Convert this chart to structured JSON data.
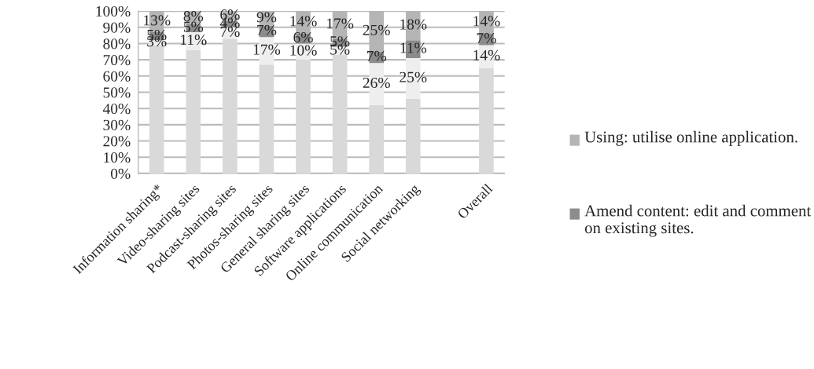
{
  "chart_data": {
    "type": "bar",
    "stacked": true,
    "categories": [
      "Information sharing*",
      "Video-sharing sites",
      "Podcast-sharing sites",
      "Photos-sharing sites",
      "General sharing sites",
      "Software applications",
      "Online communication",
      "Social networking",
      null,
      "Overall"
    ],
    "series": [
      {
        "color": "#d9d9d9",
        "values": [
          79,
          76,
          83,
          67,
          70,
          73,
          42,
          46,
          null,
          65
        ]
      },
      {
        "color": "#eeeeee",
        "values": [
          3,
          11,
          7,
          17,
          10,
          5,
          26,
          25,
          null,
          14
        ],
        "value_labels": [
          "3%",
          "11%",
          "7%",
          "17%",
          "10%",
          "5%",
          "26%",
          "25%",
          null,
          "14%"
        ]
      },
      {
        "name": "Amend content: edit and comment on existing sites.",
        "color": "#8c8c8c",
        "values": [
          5,
          5,
          4,
          7,
          6,
          5,
          7,
          11,
          null,
          7
        ],
        "value_labels": [
          "5%",
          "5%",
          "4%",
          "7%",
          "6%",
          "5%",
          "7%",
          "11%",
          null,
          "7%"
        ]
      },
      {
        "name": "Using: utilise online application.",
        "color": "#b5b5b5",
        "values": [
          13,
          8,
          6,
          9,
          14,
          17,
          25,
          18,
          null,
          14
        ],
        "value_labels": [
          "13%",
          "8%",
          "6%",
          "9%",
          "14%",
          "17%",
          "25%",
          "18%",
          null,
          "14%"
        ]
      }
    ],
    "ylim": [
      0,
      100
    ],
    "yticks": [
      {
        "value": 0,
        "label": "0%"
      },
      {
        "value": 10,
        "label": "10%"
      },
      {
        "value": 20,
        "label": "20%"
      },
      {
        "value": 30,
        "label": "30%"
      },
      {
        "value": 40,
        "label": "40%"
      },
      {
        "value": 50,
        "label": "50%"
      },
      {
        "value": 60,
        "label": "60%"
      },
      {
        "value": 70,
        "label": "70%"
      },
      {
        "value": 80,
        "label": "80%"
      },
      {
        "value": 90,
        "label": "90%"
      },
      {
        "value": 100,
        "label": "100%"
      }
    ],
    "grid": "y",
    "legend": "right"
  }
}
